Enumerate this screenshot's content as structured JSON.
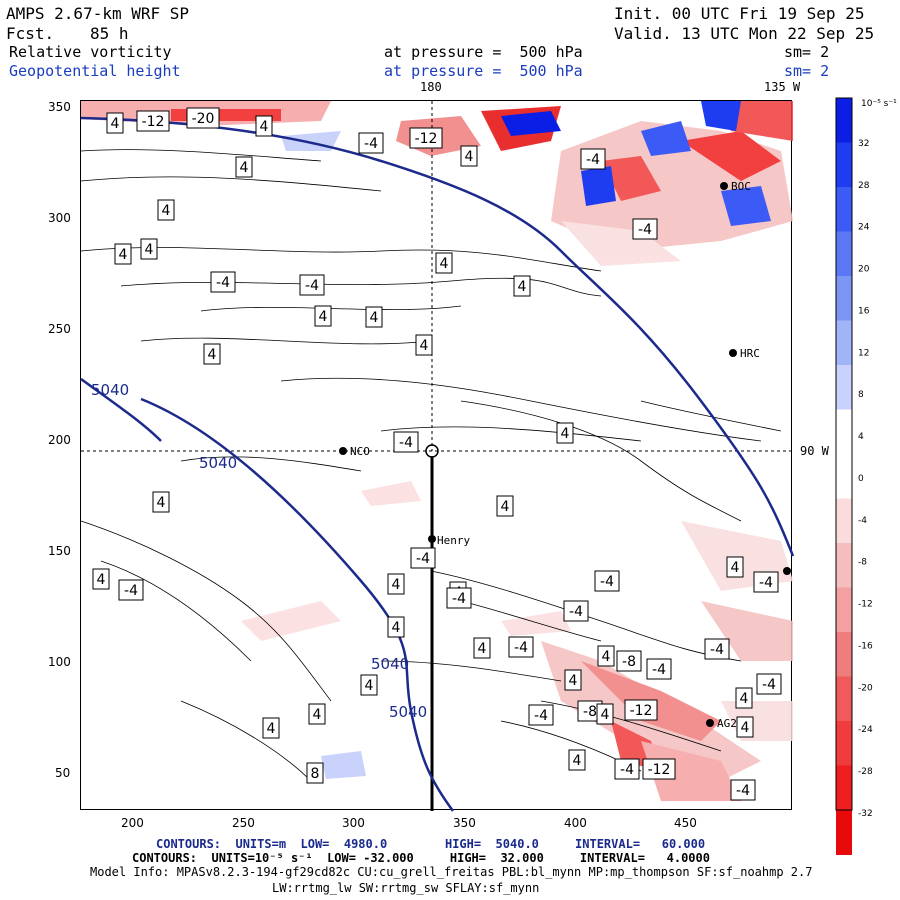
{
  "header": {
    "model_title": "AMPS 2.67-km WRF SP",
    "forecast_label": "Fcst.",
    "forecast_hours": "85 h",
    "init_text": "Init. 00 UTC Fri 19 Sep 25",
    "valid_text": "Valid. 13 UTC Mon 22 Sep 25",
    "field1_name": "Relative vorticity",
    "field1_level": "at pressure =  500 hPa",
    "field1_sm": "sm= 2",
    "field2_name": "Geopotential height",
    "field2_level": "at pressure =  500 hPa",
    "field2_sm": "sm= 2",
    "lon_180": "180",
    "lon_135w": "135 W",
    "lon_90w": "90 W"
  },
  "axes": {
    "x_ticks": [
      "200",
      "250",
      "300",
      "350",
      "400",
      "450"
    ],
    "y_ticks": [
      "350",
      "300",
      "250",
      "200",
      "150",
      "100",
      "50"
    ]
  },
  "stations": [
    {
      "name": "NCO"
    },
    {
      "name": "Henry"
    },
    {
      "name": "HRC"
    },
    {
      "name": "BOC"
    },
    {
      "name": "AG2"
    }
  ],
  "height_contour_labels": [
    "5040",
    "5040",
    "5040",
    "5040"
  ],
  "vorticity_labels": [
    "4",
    "-12",
    "-20",
    "4",
    "-4",
    "-12",
    "4",
    "-4",
    "4",
    "4",
    "4",
    "4",
    "-4",
    "-4",
    "4",
    "4",
    "-4",
    "4",
    "4",
    "4",
    "4",
    "-4",
    "4",
    "4",
    "4",
    "4",
    "-4",
    "4",
    "4",
    "-4",
    "4",
    "4",
    "-4",
    "4",
    "-4",
    "4",
    "4",
    "-4",
    "-4",
    "-8",
    "-4",
    "-8",
    "-12",
    "-4",
    "-4",
    "-12",
    "-4",
    "4",
    "4",
    "8",
    "-4",
    "-4",
    "-4",
    "4",
    "4",
    "4",
    "4",
    "4"
  ],
  "colorbar": {
    "units": "10⁻⁵ s⁻¹",
    "labels": [
      "32",
      "28",
      "24",
      "20",
      "16",
      "12",
      "8",
      "4",
      "0",
      "-4",
      "-8",
      "-12",
      "-16",
      "-20",
      "-24",
      "-28",
      "-32"
    ],
    "colors": [
      "#0a1ee6",
      "#1e3cf0",
      "#3c5af5",
      "#5a78f5",
      "#7d96f5",
      "#a0b4f8",
      "#c8d2fa",
      "#ffffff",
      "#ffffff",
      "#fadcdc",
      "#f5bebe",
      "#f5a0a0",
      "#f07d7d",
      "#f05a5a",
      "#f03c3c",
      "#f01e1e",
      "#e60a0a"
    ]
  },
  "footer": {
    "contours1": "CONTOURS:  UNITS=m  LOW=  4980.0        HIGH=  5040.0     INTERVAL=   60.000",
    "contours2": "CONTOURS:  UNITS=10⁻⁵ s⁻¹  LOW= -32.000     HIGH=  32.000     INTERVAL=   4.0000",
    "model_info": "Model Info: MPASv8.2.3-194-gf29cd82c CU:cu_grell_freitas PBL:bl_mynn MP:mp_thompson SF:sf_noahmp 2.7",
    "model_info2": "LW:rrtmg_lw SW:rrtmg_sw SFLAY:sf_mynn"
  }
}
